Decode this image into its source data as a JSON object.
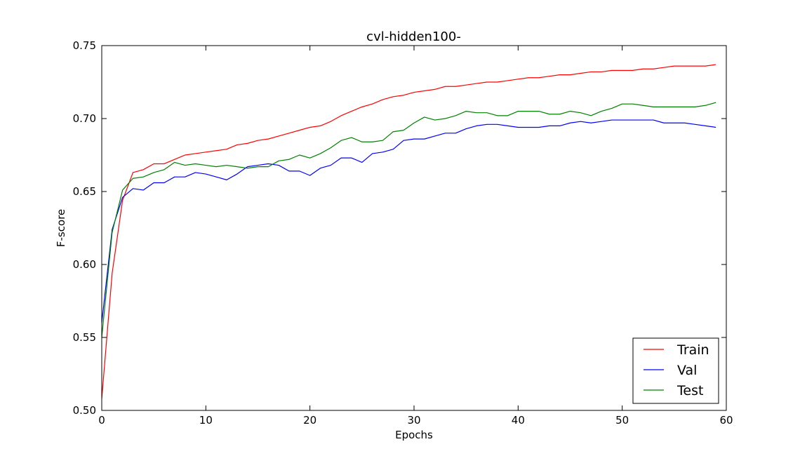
{
  "chart_data": {
    "type": "line",
    "title": "cvl-hidden100-",
    "xlabel": "Epochs",
    "ylabel": "F-score",
    "xlim": [
      0,
      60
    ],
    "ylim": [
      0.5,
      0.75
    ],
    "xticks": [
      0,
      10,
      20,
      30,
      40,
      50,
      60
    ],
    "yticks": [
      0.5,
      0.55,
      0.6,
      0.65,
      0.7,
      0.75
    ],
    "xtick_labels": [
      "0",
      "10",
      "20",
      "30",
      "40",
      "50",
      "60"
    ],
    "ytick_labels": [
      "0.50",
      "0.55",
      "0.60",
      "0.65",
      "0.70",
      "0.75"
    ],
    "grid": false,
    "legend_position": "bottom-right",
    "series": [
      {
        "name": "Train",
        "color": "#ff0000",
        "x": [
          0,
          1,
          2,
          3,
          4,
          5,
          6,
          7,
          8,
          9,
          10,
          11,
          12,
          13,
          14,
          15,
          16,
          17,
          18,
          19,
          20,
          21,
          22,
          23,
          24,
          25,
          26,
          27,
          28,
          29,
          30,
          31,
          32,
          33,
          34,
          35,
          36,
          37,
          38,
          39,
          40,
          41,
          42,
          43,
          44,
          45,
          46,
          47,
          48,
          49,
          50,
          51,
          52,
          53,
          54,
          55,
          56,
          57,
          58,
          59
        ],
        "y": [
          0.508,
          0.594,
          0.644,
          0.663,
          0.665,
          0.669,
          0.669,
          0.672,
          0.675,
          0.676,
          0.677,
          0.678,
          0.679,
          0.682,
          0.683,
          0.685,
          0.686,
          0.688,
          0.69,
          0.692,
          0.694,
          0.695,
          0.698,
          0.702,
          0.705,
          0.708,
          0.71,
          0.713,
          0.715,
          0.716,
          0.718,
          0.719,
          0.72,
          0.722,
          0.722,
          0.723,
          0.724,
          0.725,
          0.725,
          0.726,
          0.727,
          0.728,
          0.728,
          0.729,
          0.73,
          0.73,
          0.731,
          0.732,
          0.732,
          0.733,
          0.733,
          0.733,
          0.734,
          0.734,
          0.735,
          0.736,
          0.736,
          0.736,
          0.736,
          0.737
        ]
      },
      {
        "name": "Val",
        "color": "#0000ff",
        "x": [
          0,
          1,
          2,
          3,
          4,
          5,
          6,
          7,
          8,
          9,
          10,
          11,
          12,
          13,
          14,
          15,
          16,
          17,
          18,
          19,
          20,
          21,
          22,
          23,
          24,
          25,
          26,
          27,
          28,
          29,
          30,
          31,
          32,
          33,
          34,
          35,
          36,
          37,
          38,
          39,
          40,
          41,
          42,
          43,
          44,
          45,
          46,
          47,
          48,
          49,
          50,
          51,
          52,
          53,
          54,
          55,
          56,
          57,
          58,
          59
        ],
        "y": [
          0.56,
          0.624,
          0.646,
          0.652,
          0.651,
          0.656,
          0.656,
          0.66,
          0.66,
          0.663,
          0.662,
          0.66,
          0.658,
          0.662,
          0.667,
          0.668,
          0.669,
          0.668,
          0.664,
          0.664,
          0.661,
          0.666,
          0.668,
          0.673,
          0.673,
          0.67,
          0.676,
          0.677,
          0.679,
          0.685,
          0.686,
          0.686,
          0.688,
          0.69,
          0.69,
          0.693,
          0.695,
          0.696,
          0.696,
          0.695,
          0.694,
          0.694,
          0.694,
          0.695,
          0.695,
          0.697,
          0.698,
          0.697,
          0.698,
          0.699,
          0.699,
          0.699,
          0.699,
          0.699,
          0.697,
          0.697,
          0.697,
          0.696,
          0.695,
          0.694
        ]
      },
      {
        "name": "Test",
        "color": "#008000",
        "x": [
          0,
          1,
          2,
          3,
          4,
          5,
          6,
          7,
          8,
          9,
          10,
          11,
          12,
          13,
          14,
          15,
          16,
          17,
          18,
          19,
          20,
          21,
          22,
          23,
          24,
          25,
          26,
          27,
          28,
          29,
          30,
          31,
          32,
          33,
          34,
          35,
          36,
          37,
          38,
          39,
          40,
          41,
          42,
          43,
          44,
          45,
          46,
          47,
          48,
          49,
          50,
          51,
          52,
          53,
          54,
          55,
          56,
          57,
          58,
          59
        ],
        "y": [
          0.55,
          0.622,
          0.651,
          0.659,
          0.66,
          0.663,
          0.665,
          0.67,
          0.668,
          0.669,
          0.668,
          0.667,
          0.668,
          0.667,
          0.666,
          0.667,
          0.667,
          0.671,
          0.672,
          0.675,
          0.673,
          0.676,
          0.68,
          0.685,
          0.687,
          0.684,
          0.684,
          0.685,
          0.691,
          0.692,
          0.697,
          0.701,
          0.699,
          0.7,
          0.702,
          0.705,
          0.704,
          0.704,
          0.702,
          0.702,
          0.705,
          0.705,
          0.705,
          0.703,
          0.703,
          0.705,
          0.704,
          0.702,
          0.705,
          0.707,
          0.71,
          0.71,
          0.709,
          0.708,
          0.708,
          0.708,
          0.708,
          0.708,
          0.709,
          0.711
        ]
      }
    ]
  }
}
